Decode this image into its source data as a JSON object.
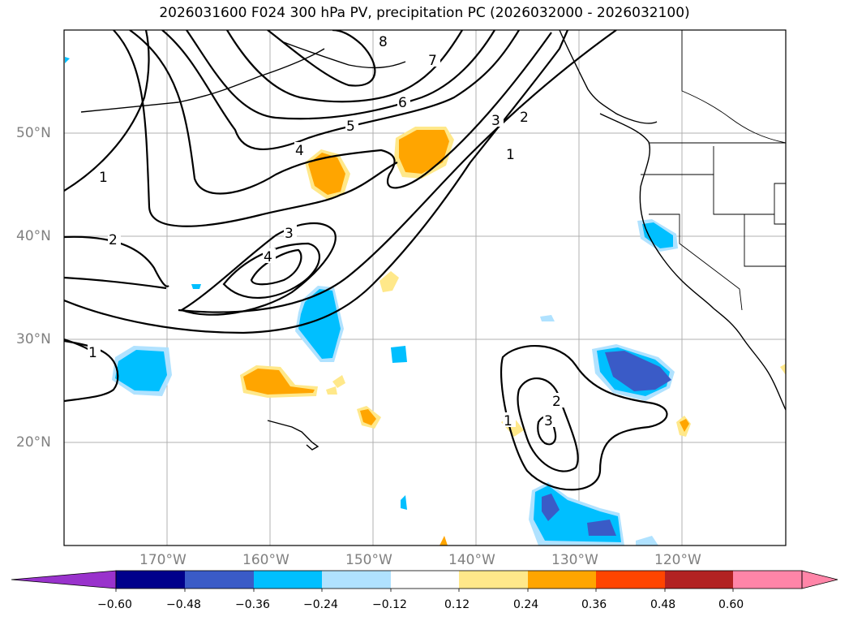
{
  "title": "2026031600 F024 300 hPa PV, precipitation PC (2026032000 - 2026032100)",
  "map": {
    "lon_range": [
      -180,
      -110
    ],
    "lat_range": [
      10,
      60
    ],
    "lat_labels": [
      "50°N",
      "40°N",
      "30°N",
      "20°N"
    ],
    "lon_labels": [
      "170°W",
      "160°W",
      "150°W",
      "140°W",
      "130°W",
      "120°W"
    ]
  },
  "contour_labels": [
    "8",
    "7",
    "6",
    "5",
    "4",
    "3",
    "2",
    "1",
    "1",
    "2",
    "3",
    "4",
    "1",
    "2",
    "3",
    "1"
  ],
  "colorbar": {
    "ticks": [
      "−0.60",
      "−0.48",
      "−0.36",
      "−0.24",
      "−0.12",
      "0.12",
      "0.24",
      "0.36",
      "0.48",
      "0.60"
    ],
    "colors": [
      "#9932cc",
      "#00008b",
      "#3a5bc7",
      "#00bfff",
      "#b0e2ff",
      "#ffffff",
      "#ffe88a",
      "#ffa500",
      "#ff4500",
      "#b22222",
      "#ff85a8",
      "#ff85a8"
    ]
  },
  "precip_colors": {
    "strong_neg": "#3a5bc7",
    "mid_neg": "#00bfff",
    "weak_neg": "#b0e2ff",
    "weak_pos": "#ffe88a",
    "mid_pos": "#ffa500"
  }
}
